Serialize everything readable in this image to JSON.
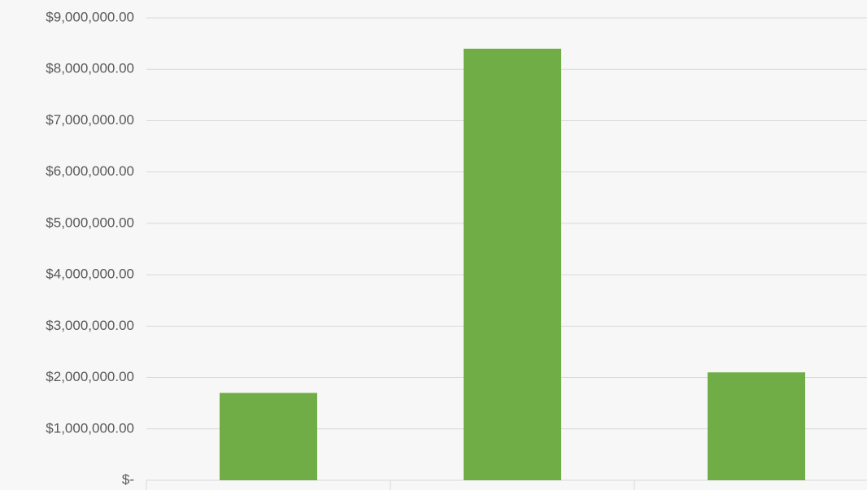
{
  "chart_data": {
    "type": "bar",
    "categories": [
      null,
      null,
      null
    ],
    "values": [
      1700000,
      8400000,
      2100000
    ],
    "color": "#70ad47",
    "ylim": [
      0,
      9000000
    ],
    "yticks": [
      {
        "value": 0,
        "label": "$-"
      },
      {
        "value": 1000000,
        "label": "$1,000,000.00"
      },
      {
        "value": 2000000,
        "label": "$2,000,000.00"
      },
      {
        "value": 3000000,
        "label": "$3,000,000.00"
      },
      {
        "value": 4000000,
        "label": "$4,000,000.00"
      },
      {
        "value": 5000000,
        "label": "$5,000,000.00"
      },
      {
        "value": 6000000,
        "label": "$6,000,000.00"
      },
      {
        "value": 7000000,
        "label": "$7,000,000.00"
      },
      {
        "value": 8000000,
        "label": "$8,000,000.00"
      },
      {
        "value": 9000000,
        "label": "$9,000,000.00"
      }
    ],
    "grid": true
  }
}
